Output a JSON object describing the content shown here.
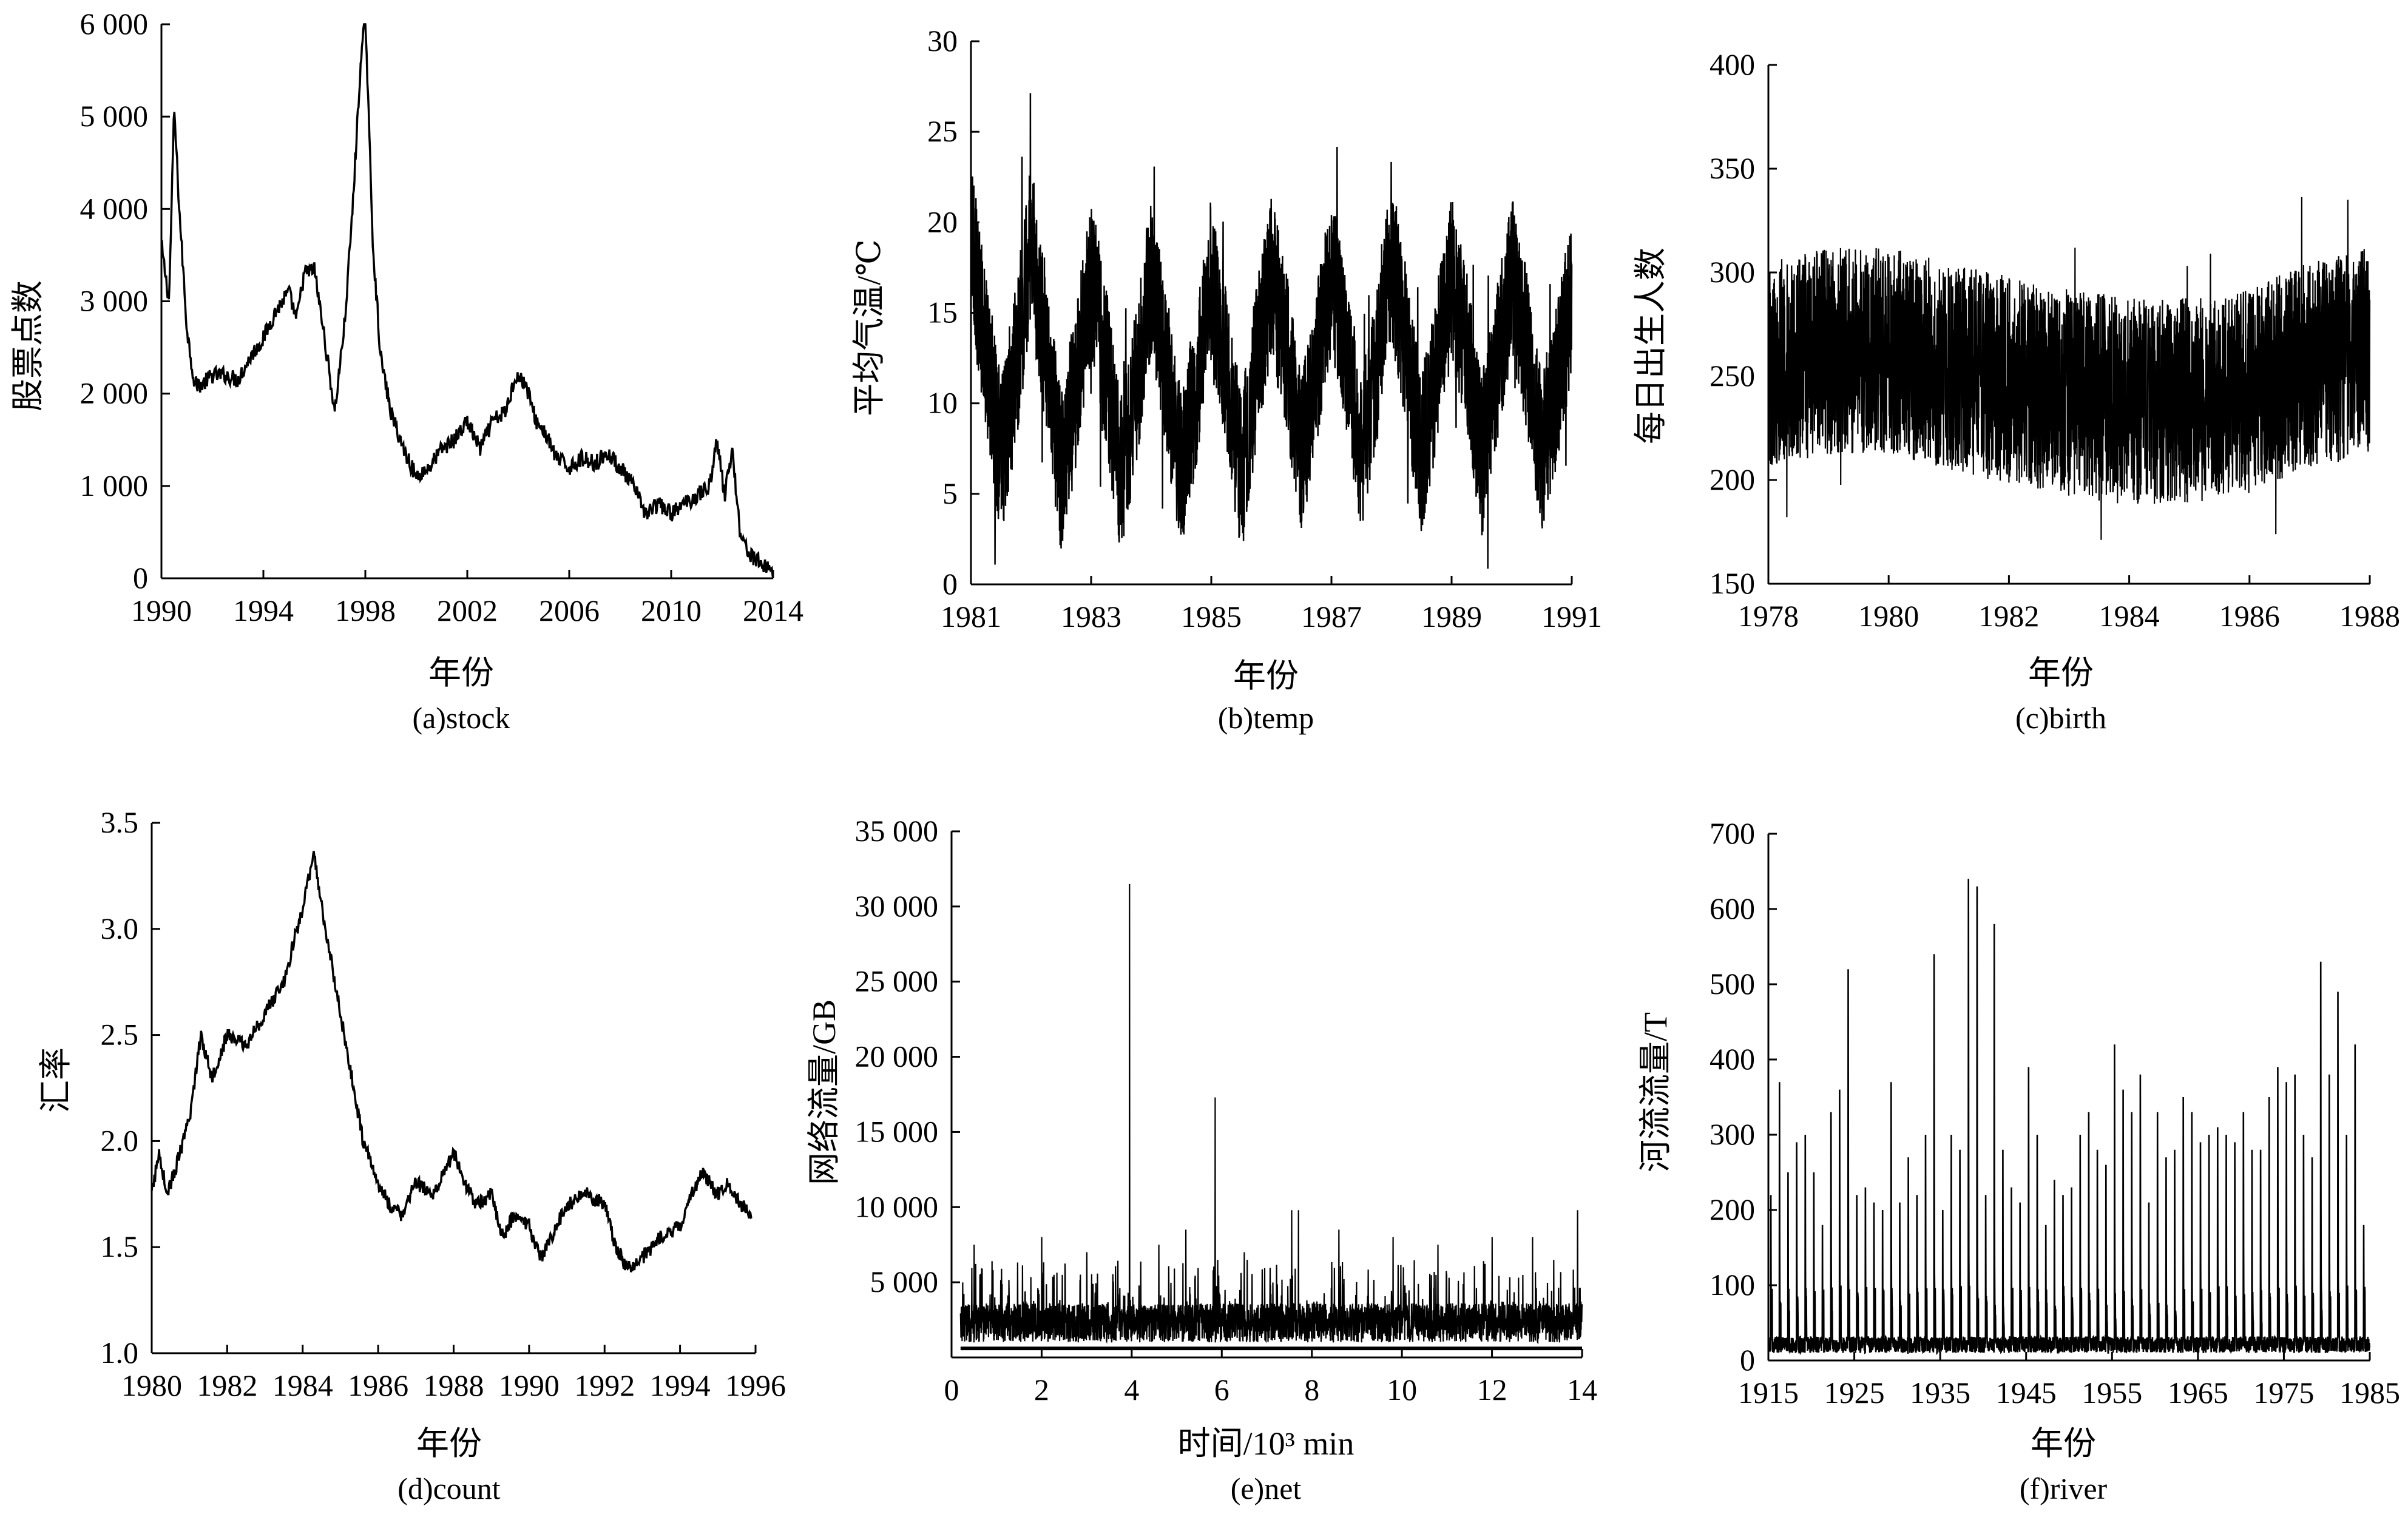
{
  "colors": {
    "line": "#000000",
    "axis": "#000000",
    "background": "#ffffff"
  },
  "chart_data": [
    {
      "id": "stock",
      "type": "line",
      "caption": "(a)stock",
      "xlabel": "年份",
      "ylabel": "股票点数",
      "xlim": [
        1990,
        2014
      ],
      "ylim": [
        0,
        6000
      ],
      "xticks": [
        1990,
        1994,
        1998,
        2002,
        2006,
        2010,
        2014
      ],
      "xtick_labels": [
        "1990",
        "1994",
        "1998",
        "2002",
        "2006",
        "2010",
        "2014"
      ],
      "yticks": [
        0,
        1000,
        2000,
        3000,
        4000,
        5000,
        6000
      ],
      "ytick_labels": [
        "0",
        "1 000",
        "2 000",
        "3 000",
        "4 000",
        "5 000",
        "6 000"
      ],
      "series": [
        {
          "x": [
            1990.0,
            1990.3,
            1990.5,
            1990.7,
            1991.0,
            1991.3,
            1991.6,
            1992.0,
            1992.5,
            1993.0,
            1993.5,
            1994.0,
            1994.5,
            1995.0,
            1995.3,
            1995.6,
            1996.0,
            1996.4,
            1996.8,
            1997.2,
            1997.5,
            1997.8,
            1998.0,
            1998.3,
            1998.6,
            1999.0,
            1999.5,
            2000.0,
            2000.5,
            2001.0,
            2001.5,
            2002.0,
            2002.5,
            2003.0,
            2003.5,
            2003.9,
            2004.3,
            2004.7,
            2005.0,
            2005.5,
            2006.0,
            2006.5,
            2007.0,
            2007.5,
            2008.0,
            2008.5,
            2009.0,
            2009.5,
            2010.0,
            2010.5,
            2011.0,
            2011.5,
            2011.8,
            2012.1,
            2012.4,
            2012.7,
            2013.0,
            2013.3,
            2013.6,
            2013.9,
            2014.0
          ],
          "y": [
            3600,
            3000,
            5100,
            4000,
            2700,
            2100,
            2100,
            2200,
            2200,
            2150,
            2400,
            2600,
            2900,
            3100,
            2800,
            3300,
            3350,
            2600,
            1800,
            2800,
            4000,
            5500,
            6100,
            3600,
            2400,
            1800,
            1400,
            1100,
            1200,
            1400,
            1500,
            1700,
            1400,
            1700,
            1800,
            2200,
            2100,
            1700,
            1600,
            1300,
            1200,
            1300,
            1250,
            1350,
            1200,
            1000,
            700,
            800,
            700,
            800,
            900,
            1000,
            1500,
            900,
            1400,
            500,
            300,
            200,
            150,
            100,
            100
          ]
        }
      ]
    },
    {
      "id": "temp",
      "type": "line",
      "caption": "(b)temp",
      "xlabel": "年份",
      "ylabel": "平均气温/℃",
      "xlim": [
        1981,
        1991
      ],
      "ylim": [
        0,
        30
      ],
      "xticks": [
        1981,
        1983,
        1985,
        1987,
        1989,
        1991
      ],
      "xtick_labels": [
        "1981",
        "1983",
        "1985",
        "1987",
        "1989",
        "1991"
      ],
      "yticks": [
        0,
        5,
        10,
        15,
        20,
        25,
        30
      ],
      "ytick_labels": [
        "0",
        "5",
        "10",
        "15",
        "20",
        "25",
        "30"
      ],
      "series": [
        {
          "x": [
            1981.0,
            1981.25,
            1981.5,
            1981.75,
            1982.0,
            1982.25,
            1982.5,
            1982.75,
            1983.0,
            1983.25,
            1983.5,
            1983.75,
            1984.0,
            1984.25,
            1984.5,
            1984.75,
            1985.0,
            1985.25,
            1985.5,
            1985.75,
            1986.0,
            1986.25,
            1986.5,
            1986.75,
            1987.0,
            1987.25,
            1987.5,
            1987.75,
            1988.0,
            1988.25,
            1988.5,
            1988.75,
            1989.0,
            1989.25,
            1989.5,
            1989.75,
            1990.0,
            1990.25,
            1990.5,
            1990.75,
            1991.0
          ],
          "y": [
            19,
            13,
            7,
            12,
            19,
            13,
            6,
            11,
            17,
            12,
            6,
            11,
            17,
            12,
            6,
            11,
            17,
            12,
            6,
            12,
            17,
            13,
            7,
            12,
            17,
            13,
            7,
            12,
            18,
            13,
            7,
            12,
            17,
            13,
            7,
            12,
            17,
            13,
            7,
            11,
            16
          ]
        }
      ]
    },
    {
      "id": "birth",
      "type": "line",
      "caption": "(c)birth",
      "xlabel": "年份",
      "ylabel": "每日出生人数",
      "xlim": [
        1978,
        1988
      ],
      "ylim": [
        150,
        400
      ],
      "xticks": [
        1978,
        1980,
        1982,
        1984,
        1986,
        1988
      ],
      "xtick_labels": [
        "1978",
        "1980",
        "1982",
        "1984",
        "1986",
        "1988"
      ],
      "yticks": [
        150,
        200,
        250,
        300,
        350,
        400
      ],
      "ytick_labels": [
        "150",
        "200",
        "250",
        "300",
        "350",
        "400"
      ],
      "series": [
        {
          "x": [
            1978,
            1979,
            1980,
            1981,
            1982,
            1983,
            1984,
            1985,
            1986,
            1987,
            1988
          ],
          "y": [
            255,
            262,
            262,
            255,
            248,
            242,
            238,
            238,
            243,
            255,
            262
          ]
        }
      ]
    },
    {
      "id": "count",
      "type": "line",
      "caption": "(d)count",
      "xlabel": "年份",
      "ylabel": "汇率",
      "xlim": [
        1980,
        1996
      ],
      "ylim": [
        1.0,
        3.5
      ],
      "xticks": [
        1980,
        1982,
        1984,
        1986,
        1988,
        1990,
        1992,
        1994,
        1996
      ],
      "xtick_labels": [
        "1980",
        "1982",
        "1984",
        "1986",
        "1988",
        "1990",
        "1992",
        "1994",
        "1996"
      ],
      "yticks": [
        1.0,
        1.5,
        2.0,
        2.5,
        3.0,
        3.5
      ],
      "ytick_labels": [
        "1.0",
        "1.5",
        "2.0",
        "2.5",
        "3.0",
        "3.5"
      ],
      "series": [
        {
          "x": [
            1980.0,
            1980.2,
            1980.4,
            1980.6,
            1981.0,
            1981.3,
            1981.6,
            1982.0,
            1982.5,
            1983.0,
            1983.5,
            1984.0,
            1984.3,
            1984.6,
            1985.0,
            1985.3,
            1985.6,
            1986.0,
            1986.3,
            1986.6,
            1987.0,
            1987.5,
            1988.0,
            1988.3,
            1988.6,
            1989.0,
            1989.3,
            1989.6,
            1990.0,
            1990.3,
            1990.6,
            1991.0,
            1991.5,
            1992.0,
            1992.3,
            1992.6,
            1993.0,
            1993.5,
            1994.0,
            1994.3,
            1994.6,
            1995.0,
            1995.3,
            1995.6,
            1995.9
          ],
          "y": [
            1.75,
            1.95,
            1.75,
            1.85,
            2.1,
            2.5,
            2.3,
            2.5,
            2.45,
            2.6,
            2.75,
            3.1,
            3.35,
            3.0,
            2.6,
            2.3,
            2.0,
            1.8,
            1.7,
            1.65,
            1.8,
            1.75,
            1.95,
            1.8,
            1.7,
            1.75,
            1.55,
            1.65,
            1.6,
            1.45,
            1.55,
            1.7,
            1.75,
            1.7,
            1.5,
            1.4,
            1.45,
            1.55,
            1.6,
            1.75,
            1.85,
            1.75,
            1.8,
            1.7,
            1.65
          ]
        }
      ]
    },
    {
      "id": "net",
      "type": "line",
      "caption": "(e)net",
      "xlabel": "时间/10³ min",
      "ylabel": "网络流量/GB",
      "xlim": [
        0,
        14
      ],
      "ylim": [
        0,
        35000
      ],
      "xticks": [
        0,
        2,
        4,
        6,
        8,
        10,
        12,
        14
      ],
      "xtick_labels": [
        "0",
        "2",
        "4",
        "6",
        "8",
        "10",
        "12",
        "14"
      ],
      "yticks": [
        5000,
        10000,
        15000,
        20000,
        25000,
        30000,
        35000
      ],
      "ytick_labels": [
        "5 000",
        "10 000",
        "15 000",
        "20 000",
        "25 000",
        "30 000",
        "35 000"
      ],
      "spikes": [
        {
          "x": 0.5,
          "y": 7500
        },
        {
          "x": 2.0,
          "y": 8000
        },
        {
          "x": 3.0,
          "y": 7000
        },
        {
          "x": 3.95,
          "y": 31500
        },
        {
          "x": 4.6,
          "y": 7500
        },
        {
          "x": 5.2,
          "y": 8500
        },
        {
          "x": 5.85,
          "y": 17300
        },
        {
          "x": 6.5,
          "y": 7000
        },
        {
          "x": 7.55,
          "y": 9800
        },
        {
          "x": 7.7,
          "y": 9800
        },
        {
          "x": 8.6,
          "y": 8500
        },
        {
          "x": 9.8,
          "y": 8000
        },
        {
          "x": 10.8,
          "y": 7500
        },
        {
          "x": 12.0,
          "y": 8000
        },
        {
          "x": 12.9,
          "y": 8000
        },
        {
          "x": 13.9,
          "y": 9800
        }
      ]
    },
    {
      "id": "river",
      "type": "line",
      "caption": "(f)river",
      "xlabel": "年份",
      "ylabel": "河流流量/T",
      "xlim": [
        1915,
        1985
      ],
      "ylim": [
        0,
        700
      ],
      "xticks": [
        1915,
        1925,
        1935,
        1945,
        1955,
        1965,
        1975,
        1985
      ],
      "xtick_labels": [
        "1915",
        "1925",
        "1935",
        "1945",
        "1955",
        "1965",
        "1975",
        "1985"
      ],
      "yticks": [
        0,
        100,
        200,
        300,
        400,
        500,
        600,
        700
      ],
      "ytick_labels": [
        "0",
        "100",
        "200",
        "300",
        "400",
        "500",
        "600",
        "700"
      ],
      "annual_peaks": [
        220,
        370,
        250,
        290,
        300,
        250,
        180,
        330,
        360,
        520,
        220,
        230,
        210,
        200,
        370,
        210,
        270,
        220,
        300,
        540,
        200,
        300,
        280,
        640,
        630,
        220,
        580,
        280,
        230,
        210,
        390,
        300,
        180,
        240,
        220,
        230,
        300,
        330,
        280,
        260,
        420,
        360,
        330,
        380,
        210,
        330,
        270,
        280,
        350,
        330,
        290,
        300,
        310,
        300,
        290,
        330,
        280,
        280,
        350,
        390,
        370,
        380,
        300,
        270,
        530,
        380,
        490,
        300,
        420,
        180
      ]
    }
  ]
}
